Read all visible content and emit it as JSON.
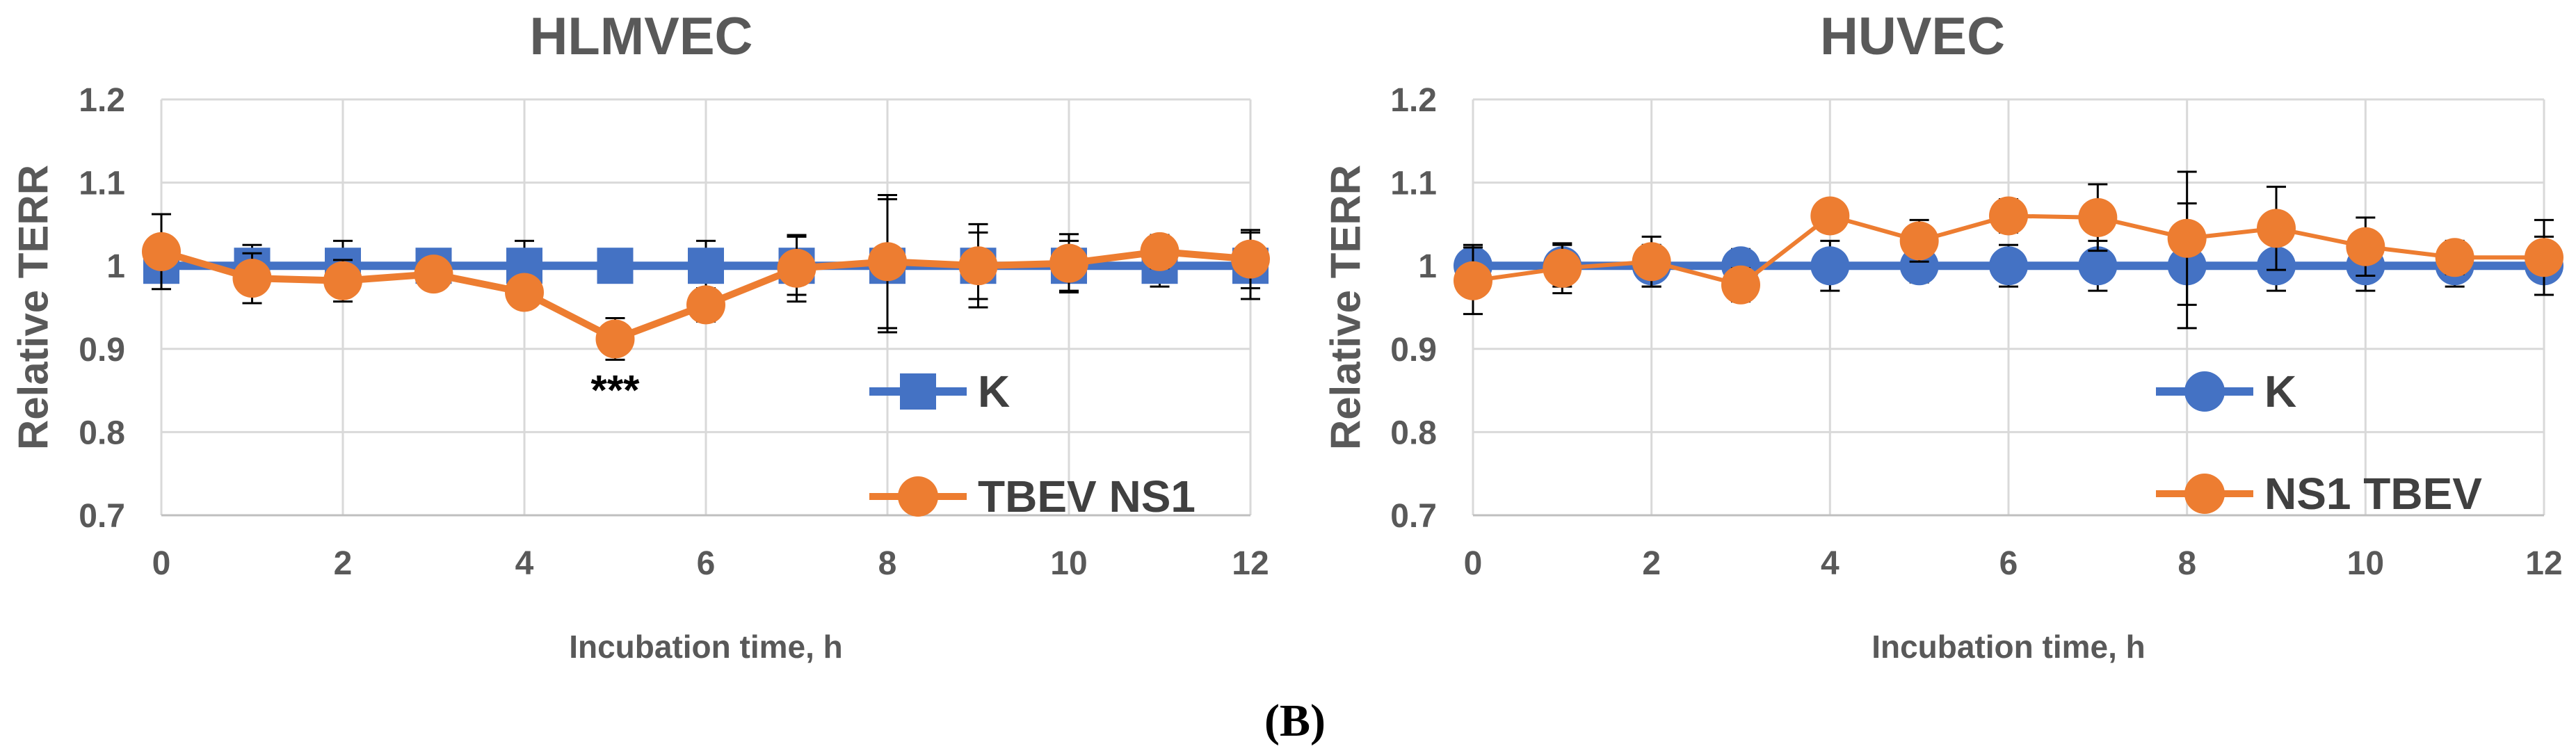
{
  "panel_label": "(B)",
  "chart_data": [
    {
      "type": "line",
      "title": "HLMVEC",
      "xlabel": "Incubation time, h",
      "ylabel": "Relative TERR",
      "xlim": [
        0,
        12
      ],
      "ylim": [
        0.7,
        1.2
      ],
      "xticks": [
        0,
        2,
        4,
        6,
        8,
        10,
        12
      ],
      "yticks": [
        0.7,
        0.8,
        0.9,
        1,
        1.1,
        1.2
      ],
      "x": [
        0,
        1,
        2,
        3,
        4,
        5,
        6,
        7,
        8,
        9,
        10,
        11,
        12
      ],
      "series": [
        {
          "name": "K",
          "marker": "square",
          "color": "#4472c4",
          "values": [
            1,
            1,
            1,
            1,
            1,
            1,
            1,
            1,
            1,
            1,
            1,
            1,
            1
          ],
          "errors": [
            0,
            0.025,
            0.03,
            0,
            0.03,
            0.02,
            0.03,
            0.035,
            0.08,
            0.04,
            0.03,
            0.025,
            0.04
          ]
        },
        {
          "name": "TBEV NS1",
          "marker": "circle",
          "color": "#ed7d31",
          "values": [
            1.017,
            0.985,
            0.982,
            0.99,
            0.968,
            0.912,
            0.953,
            0.997,
            1.005,
            1,
            1.003,
            1.017,
            1.008
          ],
          "errors": [
            0.045,
            0.03,
            0.025,
            0.01,
            0.015,
            0.025,
            0.02,
            0.04,
            0.08,
            0.05,
            0.035,
            0.02,
            0.035
          ]
        }
      ],
      "annotations": [
        {
          "x": 5,
          "y": 0.85,
          "text": "***"
        }
      ],
      "legend_position": "right"
    },
    {
      "type": "line",
      "title": "HUVEC",
      "xlabel": "Incubation time, h",
      "ylabel": "Relative TERR",
      "xlim": [
        0,
        12
      ],
      "ylim": [
        0.7,
        1.2
      ],
      "xticks": [
        0,
        2,
        4,
        6,
        8,
        10,
        12
      ],
      "yticks": [
        0.7,
        0.8,
        0.9,
        1,
        1.1,
        1.2
      ],
      "x": [
        0,
        1,
        2,
        3,
        4,
        5,
        6,
        7,
        8,
        9,
        10,
        11,
        12
      ],
      "series": [
        {
          "name": "K",
          "marker": "circle",
          "color": "#4472c4",
          "values": [
            1,
            1,
            1,
            1,
            1,
            1,
            1,
            1,
            1,
            1,
            1,
            1,
            1
          ],
          "errors": [
            0.025,
            0.025,
            0.025,
            0.02,
            0.03,
            0.02,
            0.025,
            0.03,
            0.075,
            0.03,
            0.03,
            0.025,
            0.035
          ]
        },
        {
          "name": "NS1 TBEV",
          "marker": "circle",
          "color": "#ed7d31",
          "values": [
            0.982,
            0.997,
            1.005,
            0.977,
            1.06,
            1.03,
            1.06,
            1.058,
            1.033,
            1.045,
            1.023,
            1.01,
            1.01
          ],
          "errors": [
            0.04,
            0.03,
            0.03,
            0.02,
            0.01,
            0.025,
            0.02,
            0.04,
            0.08,
            0.05,
            0.035,
            0.02,
            0.045
          ]
        }
      ],
      "annotations": [],
      "legend_position": "right"
    }
  ]
}
